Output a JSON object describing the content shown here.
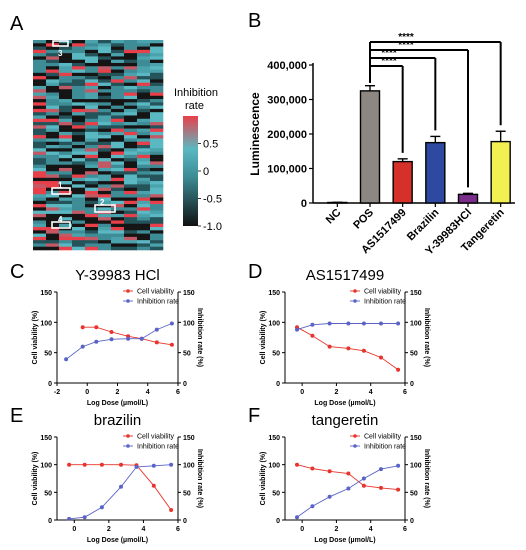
{
  "panel_letters": [
    "A",
    "B",
    "C",
    "D",
    "E",
    "F"
  ],
  "chart_data": [
    {
      "panel": "A",
      "type": "heatmap",
      "colorbar_title_line1": "Inhibition",
      "colorbar_title_line2": "rate",
      "colorbar_ticks": [
        "0.5",
        "0",
        "-0.5",
        "-1.0"
      ],
      "colorbar_tick_values": [
        0.5,
        0,
        -0.5,
        -1.0
      ],
      "value_range": [
        -1.0,
        1.0
      ],
      "colors": {
        "low": "#111111",
        "mid": "#3d8c96",
        "mid_high": "#5ab8c2",
        "high": "#e8404a"
      },
      "rows": 64,
      "cols": 10,
      "highlight_labels": [
        "3",
        "1",
        "2",
        "4"
      ],
      "highlight_color": "#ffffff"
    },
    {
      "panel": "B",
      "type": "bar",
      "ylabel": "Luminescence",
      "ylim": [
        0,
        400000
      ],
      "yticks": [
        "0",
        "100,000",
        "200,000",
        "300,000",
        "400,000"
      ],
      "ytick_values": [
        0,
        100000,
        200000,
        300000,
        400000
      ],
      "categories": [
        "NC",
        "POS",
        "AS1517499",
        "Brazilin",
        "Y-39983HCl",
        "Tangeretin"
      ],
      "values": [
        1500,
        325000,
        120000,
        175000,
        25000,
        178000
      ],
      "errors": [
        500,
        15000,
        8000,
        18000,
        3000,
        30000
      ],
      "colors": [
        "#ffffff",
        "#8c8782",
        "#d6302a",
        "#2e49a0",
        "#7a2e8c",
        "#f1ef52"
      ],
      "significance": [
        "****",
        "****",
        "****",
        "****"
      ]
    },
    {
      "panel": "C",
      "type": "line",
      "title": "Y-39983 HCl",
      "xlabel": "Log Dose (µmol/L)",
      "ylabel_left": "Cell viability (%)",
      "ylabel_right": "Inhibition rate (%)",
      "xlim": [
        -2,
        6
      ],
      "xticks": [
        "-2",
        "0",
        "2",
        "4",
        "6"
      ],
      "xtick_values": [
        -2,
        0,
        2,
        4,
        6
      ],
      "ylim_left": [
        0,
        150
      ],
      "ylim_right": [
        0,
        150
      ],
      "yticks_left": [
        "0",
        "50",
        "100",
        "150"
      ],
      "yticks_right": [
        "0",
        "50",
        "100",
        "150"
      ],
      "ytick_values": [
        0,
        50,
        100,
        150
      ],
      "series": [
        {
          "name": "Cell viability",
          "axis": "left",
          "color": "#e8342c",
          "x": [
            -0.3,
            0.6,
            1.6,
            2.7,
            3.6,
            4.6,
            5.6
          ],
          "y": [
            92,
            92,
            84,
            77,
            73,
            67,
            63
          ]
        },
        {
          "name": "Inhibition rate",
          "axis": "right",
          "color": "#5a64c8",
          "x": [
            -1.4,
            -0.3,
            0.6,
            1.6,
            2.7,
            3.6,
            4.6,
            5.6
          ],
          "y": [
            39,
            60,
            68,
            72,
            73,
            73,
            88,
            98
          ]
        }
      ]
    },
    {
      "panel": "D",
      "type": "line",
      "title": "AS1517499",
      "xlabel": "Log Dose (µmol/L)",
      "ylabel_left": "Cell viability (%)",
      "ylabel_right": "Inhibition rate (%)",
      "xlim": [
        -1,
        6
      ],
      "xticks": [
        "0",
        "2",
        "4",
        "6"
      ],
      "xtick_values": [
        0,
        2,
        4,
        6
      ],
      "ylim_left": [
        0,
        150
      ],
      "ylim_right": [
        0,
        150
      ],
      "yticks_left": [
        "0",
        "50",
        "100",
        "150"
      ],
      "yticks_right": [
        "0",
        "50",
        "100",
        "150"
      ],
      "ytick_values": [
        0,
        50,
        100,
        150
      ],
      "series": [
        {
          "name": "Cell viability",
          "axis": "left",
          "color": "#e8342c",
          "x": [
            -0.3,
            0.6,
            1.6,
            2.7,
            3.6,
            4.6,
            5.6
          ],
          "y": [
            92,
            78,
            60,
            57,
            53,
            42,
            22
          ]
        },
        {
          "name": "Inhibition rate",
          "axis": "right",
          "color": "#5a64c8",
          "x": [
            -0.3,
            0.6,
            1.6,
            2.7,
            3.6,
            4.6,
            5.6
          ],
          "y": [
            88,
            96,
            98,
            98,
            98,
            98,
            98
          ]
        }
      ]
    },
    {
      "panel": "E",
      "type": "line",
      "title": "brazilin",
      "xlabel": "Log Dose (µmol/L)",
      "ylabel_left": "Cell viability (%)",
      "ylabel_right": "Inhibition rate (%)",
      "xlim": [
        -1,
        6
      ],
      "xticks": [
        "0",
        "2",
        "4",
        "6"
      ],
      "xtick_values": [
        0,
        2,
        4,
        6
      ],
      "ylim_left": [
        0,
        150
      ],
      "ylim_right": [
        0,
        150
      ],
      "yticks_left": [
        "0",
        "50",
        "100",
        "150"
      ],
      "yticks_right": [
        "0",
        "50",
        "100",
        "150"
      ],
      "ytick_values": [
        0,
        50,
        100,
        150
      ],
      "series": [
        {
          "name": "Cell viability",
          "axis": "left",
          "color": "#e8342c",
          "x": [
            -0.3,
            0.6,
            1.6,
            2.7,
            3.6,
            4.6,
            5.6
          ],
          "y": [
            100,
            100,
            100,
            100,
            99,
            62,
            18
          ]
        },
        {
          "name": "Inhibition rate",
          "axis": "right",
          "color": "#5a64c8",
          "x": [
            -0.3,
            0.6,
            1.6,
            2.7,
            3.6,
            4.6,
            5.6
          ],
          "y": [
            2,
            5,
            23,
            60,
            96,
            98,
            100
          ]
        }
      ]
    },
    {
      "panel": "F",
      "type": "line",
      "title": "tangeretin",
      "xlabel": "Log Dose (µmol/L)",
      "ylabel_left": "Cell viability (%)",
      "ylabel_right": "Inhibition rate (%)",
      "xlim": [
        -1,
        6
      ],
      "xticks": [
        "0",
        "2",
        "4",
        "6"
      ],
      "xtick_values": [
        0,
        2,
        4,
        6
      ],
      "ylim_left": [
        0,
        150
      ],
      "ylim_right": [
        0,
        150
      ],
      "yticks_left": [
        "0",
        "50",
        "100",
        "150"
      ],
      "yticks_right": [
        "0",
        "50",
        "100",
        "150"
      ],
      "ytick_values": [
        0,
        50,
        100,
        150
      ],
      "series": [
        {
          "name": "Cell viability",
          "axis": "left",
          "color": "#e8342c",
          "x": [
            -0.3,
            0.6,
            1.6,
            2.7,
            3.6,
            4.6,
            5.6
          ],
          "y": [
            100,
            93,
            88,
            84,
            62,
            58,
            55
          ]
        },
        {
          "name": "Inhibition rate",
          "axis": "right",
          "color": "#5a64c8",
          "x": [
            -0.3,
            0.6,
            1.6,
            2.7,
            3.6,
            4.6,
            5.6
          ],
          "y": [
            5,
            25,
            42,
            57,
            75,
            92,
            98
          ]
        }
      ]
    }
  ]
}
